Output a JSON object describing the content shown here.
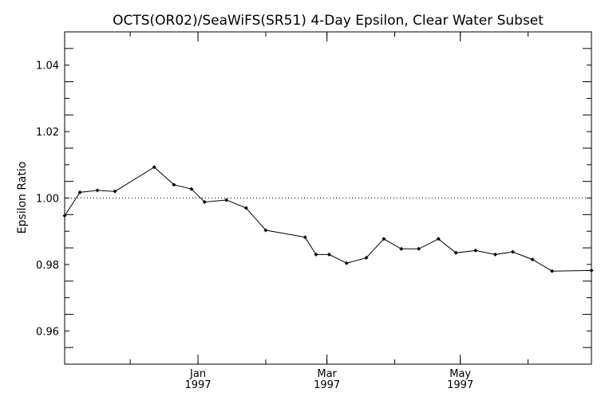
{
  "chart_data": {
    "type": "line",
    "title": "OCTS(OR02)/SeaWiFS(SR51) 4-Day Epsilon, Clear Water Subset",
    "ylabel": "Epsilon Ratio",
    "xlabel": "",
    "ylim": [
      0.95,
      1.05
    ],
    "yticks": [
      0.96,
      0.98,
      1.0,
      1.02,
      1.04
    ],
    "ytick_labels": [
      "0.96",
      "0.98",
      "1.00",
      "1.02",
      "1.04"
    ],
    "xlim": [
      "1996-11-01",
      "1997-06-30"
    ],
    "xticks": [
      {
        "date": "1997-01-01",
        "label": "Jan",
        "year": "1997"
      },
      {
        "date": "1997-03-01",
        "label": "Mar",
        "year": "1997"
      },
      {
        "date": "1997-05-01",
        "label": "May",
        "year": "1997"
      }
    ],
    "reference_line": {
      "y": 1.0,
      "style": "dotted"
    },
    "grid": false,
    "series": [
      {
        "points": [
          {
            "x": "1996-11-01",
            "y": 0.9947
          },
          {
            "x": "1996-11-08",
            "y": 1.0017
          },
          {
            "x": "1996-11-16",
            "y": 1.0023
          },
          {
            "x": "1996-11-24",
            "y": 1.002
          },
          {
            "x": "1996-12-12",
            "y": 1.0093
          },
          {
            "x": "1996-12-21",
            "y": 1.004
          },
          {
            "x": "1996-12-29",
            "y": 1.0027
          },
          {
            "x": "1997-01-04",
            "y": 0.9988
          },
          {
            "x": "1997-01-14",
            "y": 0.9994
          },
          {
            "x": "1997-01-23",
            "y": 0.997
          },
          {
            "x": "1997-02-01",
            "y": 0.9903
          },
          {
            "x": "1997-02-19",
            "y": 0.9882
          },
          {
            "x": "1997-02-24",
            "y": 0.983
          },
          {
            "x": "1997-03-02",
            "y": 0.983
          },
          {
            "x": "1997-03-10",
            "y": 0.9804
          },
          {
            "x": "1997-03-19",
            "y": 0.982
          },
          {
            "x": "1997-03-27",
            "y": 0.9877
          },
          {
            "x": "1997-04-04",
            "y": 0.9847
          },
          {
            "x": "1997-04-12",
            "y": 0.9847
          },
          {
            "x": "1997-04-21",
            "y": 0.9877
          },
          {
            "x": "1997-04-29",
            "y": 0.9835
          },
          {
            "x": "1997-05-08",
            "y": 0.9842
          },
          {
            "x": "1997-05-17",
            "y": 0.983
          },
          {
            "x": "1997-05-25",
            "y": 0.9838
          },
          {
            "x": "1997-06-03",
            "y": 0.9815
          },
          {
            "x": "1997-06-12",
            "y": 0.978
          },
          {
            "x": "1997-06-30",
            "y": 0.9782
          }
        ]
      }
    ]
  }
}
